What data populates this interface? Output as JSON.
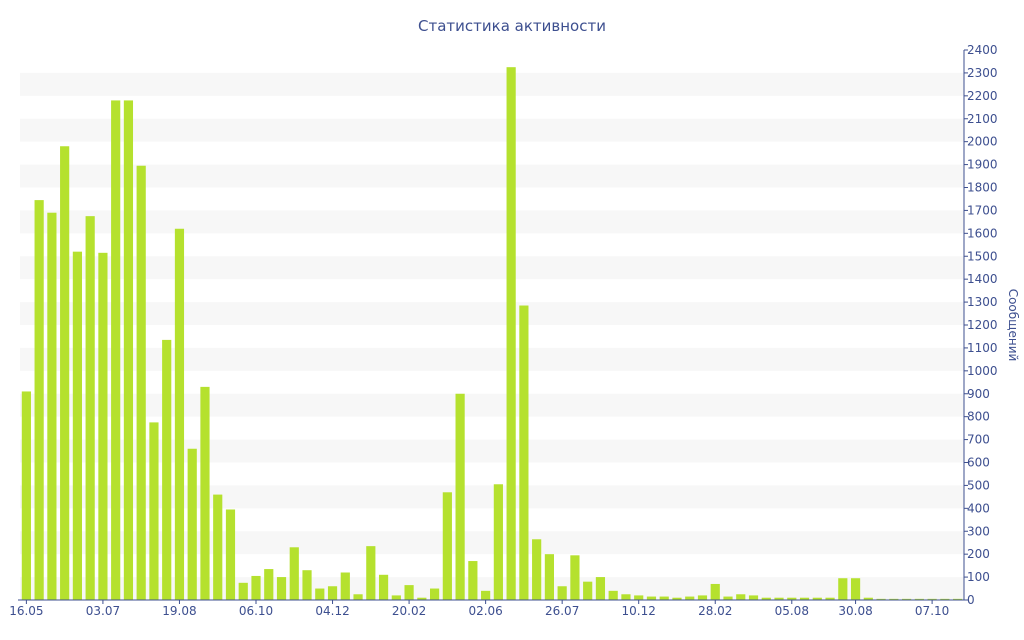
{
  "chart_data": {
    "type": "bar",
    "title": "Статистика активности",
    "ylabel": "Сообщений",
    "xlabel": "",
    "ylim": [
      0,
      2400
    ],
    "y_ticks": [
      0,
      100,
      200,
      300,
      400,
      500,
      600,
      700,
      800,
      900,
      1000,
      1100,
      1200,
      1300,
      1400,
      1500,
      1600,
      1700,
      1800,
      1900,
      2000,
      2100,
      2200,
      2300,
      2400
    ],
    "x_tick_labels": [
      {
        "label": "16.05",
        "index": 0
      },
      {
        "label": "03.07",
        "index": 6
      },
      {
        "label": "19.08",
        "index": 12
      },
      {
        "label": "06.10",
        "index": 18
      },
      {
        "label": "04.12",
        "index": 24
      },
      {
        "label": "20.02",
        "index": 30
      },
      {
        "label": "02.06",
        "index": 36
      },
      {
        "label": "26.07",
        "index": 42
      },
      {
        "label": "10.12",
        "index": 48
      },
      {
        "label": "28.02",
        "index": 54
      },
      {
        "label": "05.08",
        "index": 60
      },
      {
        "label": "30.08",
        "index": 65
      },
      {
        "label": "07.10",
        "index": 71
      }
    ],
    "values": [
      910,
      1745,
      1690,
      1980,
      1520,
      1675,
      1515,
      2180,
      2180,
      1895,
      775,
      1135,
      1620,
      660,
      930,
      460,
      395,
      75,
      105,
      135,
      100,
      230,
      130,
      50,
      60,
      120,
      25,
      235,
      110,
      20,
      65,
      10,
      50,
      470,
      900,
      170,
      40,
      505,
      2325,
      1285,
      265,
      200,
      60,
      195,
      80,
      100,
      40,
      25,
      20,
      15,
      15,
      10,
      15,
      20,
      70,
      15,
      25,
      20,
      10,
      10,
      10,
      10,
      10,
      10,
      95,
      95,
      10,
      5,
      5,
      5,
      5,
      5,
      5,
      5
    ],
    "bar_color": "#b5e12e",
    "grid": true,
    "y_axis_side": "right"
  }
}
